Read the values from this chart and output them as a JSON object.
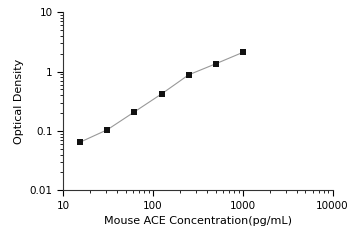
{
  "x": [
    15.6,
    31.2,
    62.5,
    125,
    250,
    500,
    1000
  ],
  "y": [
    0.065,
    0.105,
    0.21,
    0.42,
    0.88,
    1.35,
    2.1
  ],
  "xlim": [
    10,
    10000
  ],
  "ylim": [
    0.01,
    10
  ],
  "xlabel": "Mouse ACE Concentration(pg/mL)",
  "ylabel": "Optical Density",
  "line_color": "#999999",
  "marker_color": "#111111",
  "marker": "s",
  "marker_size": 5,
  "line_width": 0.8,
  "background_color": "#ffffff",
  "xticks": [
    10,
    100,
    1000,
    10000
  ],
  "yticks": [
    0.01,
    0.1,
    1,
    10
  ],
  "xlabel_fontsize": 8,
  "ylabel_fontsize": 8,
  "tick_labelsize": 7.5
}
